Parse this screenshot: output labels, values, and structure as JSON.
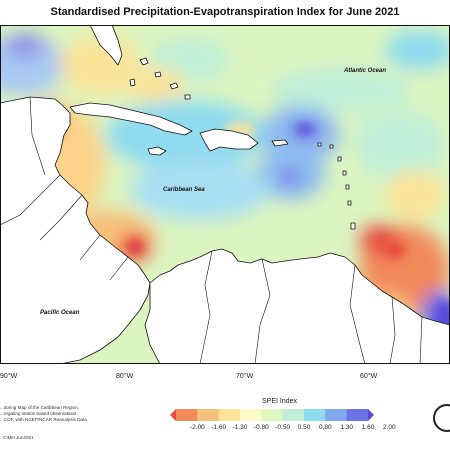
{
  "title": "Standardised Precipitation-Evapotranspiration Index for June 2021",
  "ocean_labels": {
    "atlantic": "Atlantic Ocean",
    "caribbean": "Caribbean Sea",
    "pacific": "Pacific Ocean"
  },
  "lon_labels": [
    "90°W",
    "80°W",
    "70°W",
    "60°W"
  ],
  "notes": [
    "...itoring Map of the Caribbean Region.",
    "...regating station based observations,",
    "...COF, with NCEP/NCAR Reanalysis Data"
  ],
  "copyright": "CIMH Jun2021",
  "legend": {
    "title": "SPEI Index",
    "ticks": [
      "-2.00",
      "-1.60",
      "-1.30",
      "-0.80",
      "-0.50",
      "0.50",
      "0.80",
      "1.30",
      "1.60",
      "2.00"
    ],
    "colors": [
      "#e8473a",
      "#f28a5c",
      "#f7c07a",
      "#fbe49a",
      "#fdfbc8",
      "#dff7c0",
      "#bfefd8",
      "#8fdcf0",
      "#7fa8ee",
      "#6f72e6",
      "#5a48d8"
    ]
  }
}
